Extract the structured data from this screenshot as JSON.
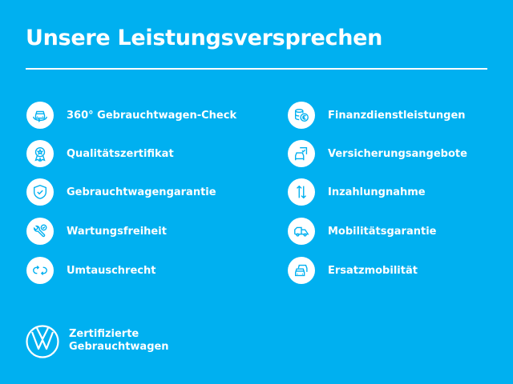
{
  "title": "Unsere Leistungsversprechen",
  "left_items": [
    {
      "label": "360° Gebrauchtwagen-Check",
      "icon": "car-360-icon"
    },
    {
      "label": "Qualitätszertifikat",
      "icon": "award-icon"
    },
    {
      "label": "Gebrauchtwagengarantie",
      "icon": "shield-check-icon"
    },
    {
      "label": "Wartungsfreiheit",
      "icon": "wrench-check-icon"
    },
    {
      "label": "Umtauschrecht",
      "icon": "exchange-icon"
    }
  ],
  "right_items": [
    {
      "label": "Finanzdienstleistungen",
      "icon": "euro-coins-icon"
    },
    {
      "label": "Versicherungsangebote",
      "icon": "insurance-car-icon"
    },
    {
      "label": "Inzahlungnahme",
      "icon": "trade-in-arrows-icon"
    },
    {
      "label": "Mobilitätsgarantie",
      "icon": "tow-truck-icon"
    },
    {
      "label": "Ersatzmobilität",
      "icon": "replacement-cars-icon"
    }
  ],
  "brand": {
    "line1": "Zertifizierte",
    "line2": "Gebrauchtwagen",
    "logo": "VW"
  },
  "colors": {
    "background": "#00b0f0",
    "foreground": "#ffffff"
  }
}
